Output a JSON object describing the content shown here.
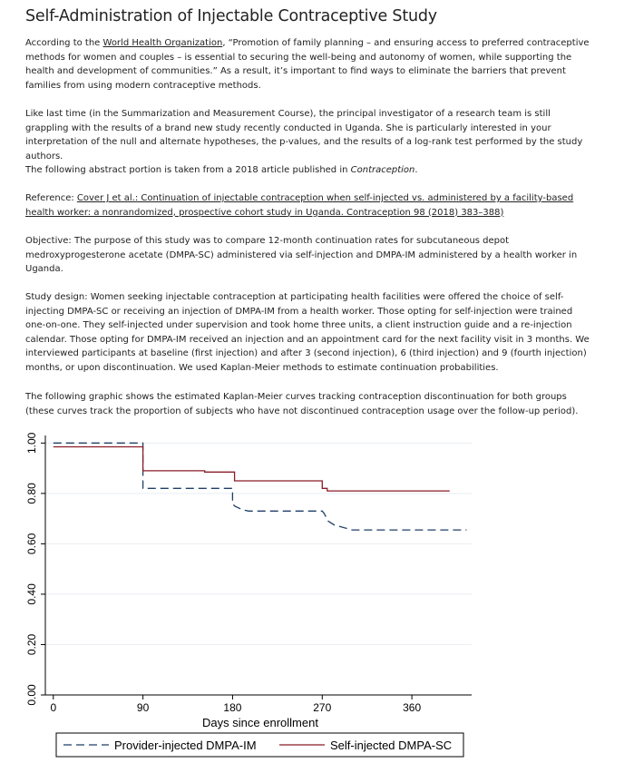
{
  "title": "Self-Administration of Injectable Contraceptive Study",
  "p1": {
    "prefix": "According to the ",
    "link": "World Health Organization",
    "suffix": ", “Promotion of family planning – and ensuring access to preferred contraceptive methods for women and couples – is essential to securing the well-being and autonomy of women, while supporting the health and development of communities.” As a result, it’s important to find ways to eliminate the barriers that prevent families from using modern contraceptive methods."
  },
  "p2": "Like last time (in the Summarization and Measurement Course), the principal investigator of a research team is still grappling with the results of a brand new study recently conducted in Uganda. She is particularly interested in your interpretation of the null and alternate hypotheses, the p-values, and the results of a log-rank test performed by the study authors.",
  "p3": {
    "prefix": "The following abstract portion is taken from a 2018 article published in ",
    "journal": "Contraception",
    "suffix": "."
  },
  "reference": {
    "label": "Reference: ",
    "link": "Cover J et al.: Continuation of injectable contraception when self-injected vs. administered by a facility-based health worker: a nonrandomized, prospective cohort study in Uganda. Contraception 98 (2018) 383–388)"
  },
  "objective": "Objective: The purpose of this study was to compare 12-month continuation rates for subcutaneous depot medroxyprogesterone acetate (DMPA-SC) administered via self-injection and DMPA-IM administered by a health worker in Uganda.",
  "design": "Study design: Women seeking injectable contraception at participating health facilities were offered the choice of self-injecting DMPA-SC or receiving an injection of DMPA-IM from a health worker. Those opting for self-injection were trained one-on-one. They self-injected under supervision and took home three units, a client instruction guide and a re-injection calendar. Those opting for DMPA-IM received an injection and an appointment card for the next facility visit in 3 months. We interviewed participants at baseline (first injection) and after 3 (second injection), 6 (third injection) and 9 (fourth injection) months, or upon discontinuation. We used Kaplan-Meier methods to estimate continuation probabilities.",
  "graphic_intro": "The following graphic shows the estimated Kaplan-Meier curves tracking contraception discontinuation for both groups (these curves track the proportion of subjects who have not discontinued contraception usage over the follow-up period).",
  "colors": {
    "provider": "#1f3f66",
    "self": "#8a1c28",
    "grid": "#e9eef3",
    "axis": "#000000"
  },
  "chart_data": {
    "type": "line",
    "title": "",
    "xlabel": "Days since enrollment",
    "ylabel": "",
    "xlim": [
      -8,
      420
    ],
    "ylim": [
      0,
      1.03
    ],
    "xticks": [
      0,
      90,
      180,
      270,
      360
    ],
    "yticks": [
      0,
      0.2,
      0.4,
      0.6,
      0.8,
      1.0
    ],
    "ytick_labels": [
      "0.00",
      "0.20",
      "0.40",
      "0.60",
      "0.80",
      "1.00"
    ],
    "grid": true,
    "legend_position": "bottom",
    "series": [
      {
        "name": "Provider-injected DMPA-IM",
        "style": "dashed",
        "color": "#1f3f66",
        "x": [
          0,
          90,
          90,
          91,
          180,
          180,
          182,
          190,
          196,
          270,
          272,
          276,
          282,
          300,
          415
        ],
        "y": [
          1.0,
          1.0,
          0.82,
          0.82,
          0.82,
          0.76,
          0.75,
          0.735,
          0.73,
          0.73,
          0.72,
          0.69,
          0.675,
          0.655,
          0.655
        ]
      },
      {
        "name": "Self-injected DMPA-SC",
        "style": "solid",
        "color": "#8a1c28",
        "x": [
          0,
          90,
          90,
          152,
          152,
          182,
          182,
          270,
          270,
          275,
          275,
          398
        ],
        "y": [
          0.985,
          0.985,
          0.89,
          0.89,
          0.885,
          0.885,
          0.85,
          0.85,
          0.82,
          0.82,
          0.81,
          0.81
        ]
      }
    ]
  }
}
